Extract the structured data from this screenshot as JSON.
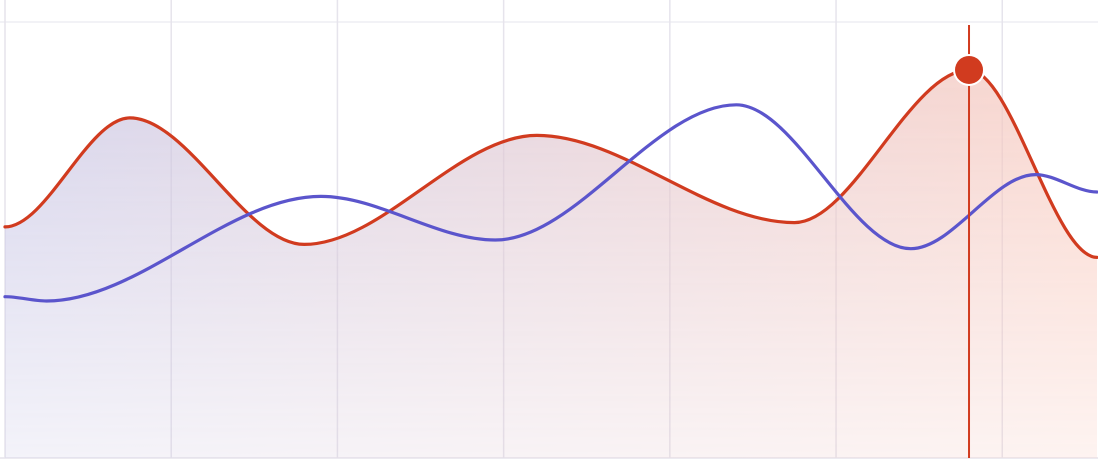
{
  "chart_data": {
    "type": "area",
    "title": "",
    "xlabel": "",
    "ylabel": "",
    "x": [
      0,
      1,
      2,
      3,
      4,
      5,
      6
    ],
    "xlim": [
      0,
      6.57
    ],
    "ylim": [
      0,
      100
    ],
    "grid": true,
    "legend": "none",
    "series": [
      {
        "color": "#d13b1f",
        "fill_color": "#f07a62",
        "x": [
          0,
          0.75,
          1.8,
          3.2,
          4.75,
          5.8,
          6.57
        ],
        "values": [
          53,
          78,
          49,
          74,
          54,
          89,
          46
        ]
      },
      {
        "color": "#5b55cc",
        "x": [
          0,
          0.25,
          1.9,
          2.95,
          4.4,
          5.45,
          6.2,
          6.57
        ],
        "values": [
          37,
          36,
          60,
          50,
          81,
          48,
          65,
          61
        ]
      }
    ],
    "highlight": {
      "series": 0,
      "x": 5.8,
      "value": 89,
      "color": "#d13b1f"
    },
    "colors": {
      "area_fill_left": "#c9c7e6",
      "area_fill_right": "#f9c9bd",
      "grid": "#e6e4ec"
    }
  }
}
